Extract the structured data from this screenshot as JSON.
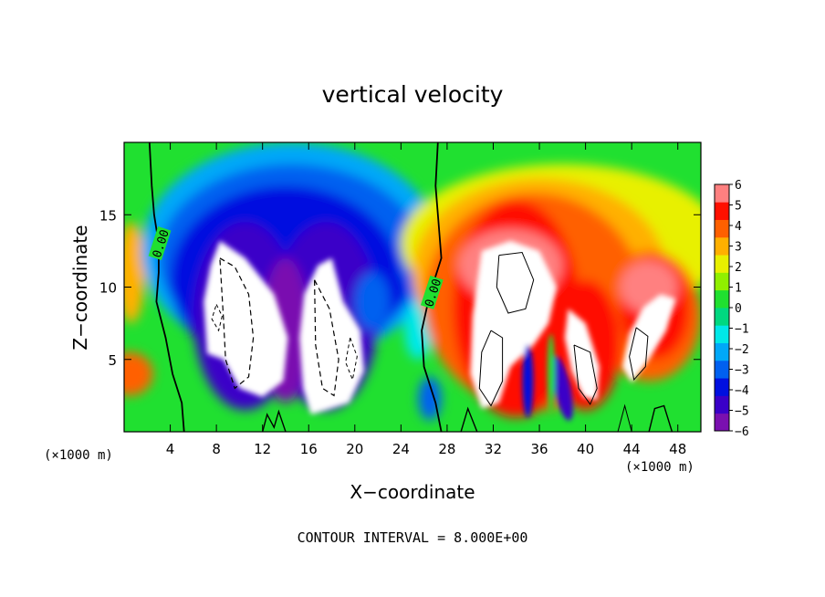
{
  "chart_data": {
    "type": "heatmap",
    "title": "vertical velocity",
    "xlabel": "X−coordinate",
    "ylabel": "Z−coordinate",
    "x_unit_left": "(×1000 m)",
    "x_unit_right": "(×1000 m)",
    "xlim": [
      0,
      50
    ],
    "ylim": [
      0,
      20
    ],
    "x_ticks": [
      4,
      8,
      12,
      16,
      20,
      24,
      28,
      32,
      36,
      40,
      44,
      48
    ],
    "y_ticks": [
      5,
      10,
      15
    ],
    "contour_label": "0.00",
    "footer": "CONTOUR INTERVAL = 8.000E+00",
    "colorbar": {
      "min": -6,
      "max": 6,
      "tick_labels": [
        "6",
        "5",
        "4",
        "3",
        "2",
        "1",
        "0",
        "−1",
        "−2",
        "−3",
        "−4",
        "−5",
        "−6"
      ],
      "colors": [
        "#7a10b0",
        "#3a00c8",
        "#0010e0",
        "#0060f0",
        "#00a8f8",
        "#00e8e8",
        "#00d880",
        "#20e030",
        "#90ef00",
        "#e8f000",
        "#ffb000",
        "#ff6000",
        "#ff1000",
        "#ff8080"
      ]
    },
    "regions": [
      {
        "name": "downdraft-core-left",
        "x": [
          7,
          15
        ],
        "z": [
          2,
          13
        ],
        "w_min": -6
      },
      {
        "name": "downdraft-core-center",
        "x": [
          13,
          21
        ],
        "z": [
          0.5,
          12
        ],
        "w_min": -6
      },
      {
        "name": "updraft-core-main",
        "x": [
          30,
          37
        ],
        "z": [
          1,
          13
        ],
        "w_max": 6
      },
      {
        "name": "updraft-right-1",
        "x": [
          38,
          42
        ],
        "z": [
          2,
          9
        ],
        "w_max": 6
      },
      {
        "name": "updraft-right-2",
        "x": [
          43,
          48
        ],
        "z": [
          3,
          10
        ],
        "w_max": 6
      }
    ]
  }
}
